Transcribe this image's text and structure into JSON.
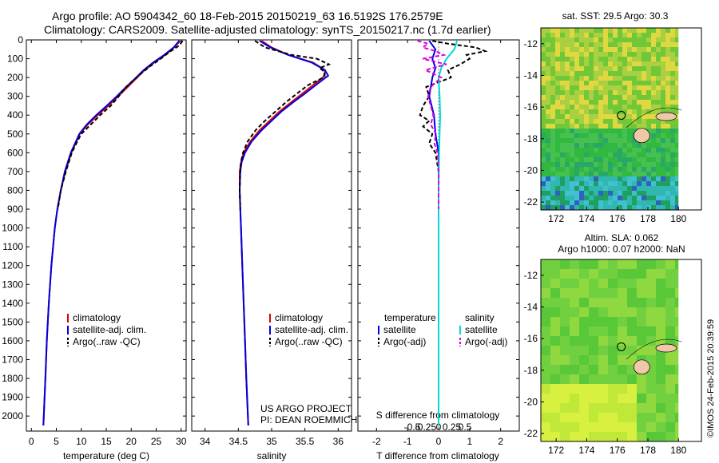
{
  "header": {
    "line1": "Argo profile: AO 5904342_60 18-Feb-2015 20150219_63 16.5192S 176.2579E",
    "line2": "Climatology: CARS2009. Satellite-adjusted climatology: synTS_20150217.nc (1.7d earlier)"
  },
  "sst_title": "sat. SST: 29.5 Argo: 30.3",
  "sla_title1": "Altim. SLA: 0.062",
  "sla_title2": "Argo h1000: 0.07 h2000: NaN",
  "watermark": "©IMOS 24-Feb-2015 20:39:59",
  "project_line1": "US ARGO PROJECT",
  "project_line2": "PI: DEAN ROEMMICH",
  "colors": {
    "climatology": "#e00000",
    "satellite": "#0000e0",
    "argo": "#000000",
    "satellite_s": "#00d8d8",
    "argo_s": "#e000e0",
    "land": "#f0c8a8"
  },
  "chart_data": [
    {
      "type": "line",
      "name": "temperature-profile",
      "xlabel": "temperature (deg C)",
      "ylabel": "",
      "xlim": [
        -1,
        31
      ],
      "ylim": [
        2080,
        0
      ],
      "xticks": [
        0,
        5,
        10,
        15,
        20,
        25,
        30
      ],
      "xtick_labels": [
        "0",
        "5",
        "10",
        "15",
        "20",
        "25",
        "30"
      ],
      "yticks": [
        0,
        100,
        200,
        300,
        400,
        500,
        600,
        700,
        800,
        900,
        1000,
        1100,
        1200,
        1300,
        1400,
        1500,
        1600,
        1700,
        1800,
        1900,
        2000
      ],
      "ytick_labels": [
        "0",
        "100",
        "200",
        "300",
        "400",
        "500",
        "600",
        "700",
        "800",
        "900",
        "1000",
        "1100",
        "1200",
        "1300",
        "1400",
        "1500",
        "1600",
        "1700",
        "1800",
        "1900",
        "2000"
      ],
      "legend": [
        "climatology",
        "satellite-adj. clim.",
        "Argo(..raw -QC)"
      ],
      "legend_position": "lower-right",
      "series": [
        {
          "name": "climatology",
          "depth": [
            5,
            40,
            80,
            120,
            160,
            200,
            250,
            300,
            350,
            400,
            450,
            500,
            600,
            700,
            800,
            900,
            1000,
            1200,
            1400,
            1600,
            1800,
            2050
          ],
          "values": [
            29.8,
            28.6,
            26.8,
            24.6,
            22.7,
            21.2,
            19.3,
            17.4,
            15.4,
            13.3,
            11.3,
            9.7,
            8.0,
            6.8,
            5.9,
            5.2,
            4.7,
            4.0,
            3.5,
            3.1,
            2.8,
            2.4
          ]
        },
        {
          "name": "satellite-adj. clim.",
          "depth": [
            5,
            40,
            80,
            120,
            160,
            200,
            250,
            300,
            350,
            400,
            450,
            500,
            600,
            700,
            800,
            900,
            1000,
            1200,
            1400,
            1600,
            1800,
            2050
          ],
          "values": [
            29.6,
            28.5,
            26.6,
            24.4,
            22.5,
            21.0,
            19.0,
            17.1,
            15.1,
            13.0,
            11.1,
            9.6,
            7.9,
            6.7,
            5.9,
            5.2,
            4.7,
            4.0,
            3.5,
            3.1,
            2.8,
            2.4
          ]
        },
        {
          "name": "Argo(..raw -QC)",
          "depth": [
            5,
            30,
            60,
            100,
            140,
            180,
            220,
            260,
            300,
            350,
            400,
            450,
            500,
            550,
            600,
            700,
            800,
            900
          ],
          "values": [
            30.3,
            29.6,
            27.9,
            25.9,
            23.8,
            21.9,
            20.2,
            18.6,
            17.5,
            15.9,
            13.8,
            11.9,
            10.0,
            9.0,
            8.1,
            6.9,
            5.9,
            5.3
          ]
        }
      ]
    },
    {
      "type": "line",
      "name": "salinity-profile",
      "xlabel": "salinity",
      "ylabel": "",
      "xlim": [
        33.8,
        36.2
      ],
      "ylim": [
        2080,
        0
      ],
      "xticks": [
        34,
        34.5,
        35,
        35.5,
        36
      ],
      "xtick_labels": [
        "34",
        "34.5",
        "35",
        "35.5",
        "36"
      ],
      "legend": [
        "climatology",
        "satellite-adj. clim.",
        "Argo(..raw -QC)"
      ],
      "legend_position": "lower-right",
      "series": [
        {
          "name": "climatology",
          "depth": [
            5,
            40,
            80,
            120,
            160,
            190,
            230,
            280,
            330,
            380,
            430,
            480,
            540,
            600,
            650,
            700,
            800,
            900,
            1000,
            1200,
            1400,
            1600,
            1800,
            2050
          ],
          "values": [
            34.85,
            35.0,
            35.25,
            35.62,
            35.8,
            35.8,
            35.66,
            35.48,
            35.3,
            35.12,
            34.97,
            34.82,
            34.68,
            34.58,
            34.54,
            34.52,
            34.52,
            34.53,
            34.54,
            34.56,
            34.58,
            34.6,
            34.62,
            34.65
          ]
        },
        {
          "name": "satellite-adj. clim.",
          "depth": [
            5,
            40,
            80,
            120,
            160,
            190,
            230,
            280,
            330,
            380,
            430,
            480,
            540,
            600,
            650,
            700,
            800,
            900,
            1000,
            1200,
            1400,
            1600,
            1800,
            2050
          ],
          "values": [
            34.82,
            34.98,
            35.25,
            35.6,
            35.8,
            35.85,
            35.7,
            35.52,
            35.33,
            35.15,
            35.0,
            34.85,
            34.7,
            34.6,
            34.55,
            34.53,
            34.52,
            34.53,
            34.54,
            34.56,
            34.58,
            34.6,
            34.62,
            34.65
          ]
        },
        {
          "name": "Argo(..raw -QC)",
          "depth": [
            5,
            40,
            80,
            100,
            130,
            150,
            170,
            200,
            240,
            280,
            330,
            380,
            430,
            480,
            540,
            600,
            650,
            700,
            800,
            900
          ],
          "values": [
            34.75,
            34.9,
            35.3,
            35.68,
            35.86,
            35.72,
            35.8,
            35.78,
            35.55,
            35.4,
            35.22,
            35.06,
            34.9,
            34.76,
            34.64,
            34.57,
            34.54,
            34.53,
            34.52,
            34.53
          ]
        }
      ]
    },
    {
      "type": "line",
      "name": "difference-profile",
      "xlabel": "T difference from climatology",
      "xlabel_top": "S difference from climatology",
      "xlim": [
        -2.6,
        2.6
      ],
      "ylim": [
        2080,
        0
      ],
      "xticks": [
        -2,
        -1,
        0,
        1,
        2
      ],
      "xtick_labels": [
        "-2",
        "-1",
        "0",
        "1",
        "2"
      ],
      "sticks": [
        -0.5,
        -0.25,
        0,
        0.25,
        0.5
      ],
      "stick_labels": [
        "-0.5",
        "-0.25",
        "0",
        "0.25",
        "0.5"
      ],
      "legend_temperature_title": "temperature",
      "legend_salinity_title": "salinity",
      "legend_temperature": [
        "satellite",
        "Argo(-adj)"
      ],
      "legend_salinity": [
        "satellite",
        "Argo(-adj)"
      ],
      "series": [
        {
          "name": "temperature satellite",
          "depth": [
            5,
            50,
            100,
            150,
            200,
            300,
            400,
            500,
            600,
            800,
            1000,
            1500,
            2050
          ],
          "values": [
            -0.3,
            -0.1,
            -0.2,
            -0.1,
            -0.2,
            -0.3,
            -0.15,
            -0.1,
            0,
            0,
            0,
            0,
            0
          ]
        },
        {
          "name": "temperature Argo(-adj)",
          "depth": [
            5,
            20,
            40,
            60,
            80,
            100,
            130,
            160,
            200,
            250,
            300,
            350,
            400,
            430,
            460,
            500,
            550,
            600,
            700,
            800,
            900
          ],
          "values": [
            -0.2,
            0.3,
            1.2,
            1.5,
            0.9,
            1.0,
            0.7,
            0.3,
            0.4,
            -0.4,
            -0.3,
            -0.5,
            -0.6,
            -0.3,
            -0.5,
            -0.2,
            -0.3,
            -0.1,
            0,
            0,
            0
          ]
        },
        {
          "name": "salinity satellite",
          "depth": [
            5,
            50,
            100,
            150,
            200,
            300,
            400,
            500,
            600,
            800,
            1000,
            1500,
            2050
          ],
          "values": [
            0.35,
            0.3,
            0.15,
            0.05,
            0,
            0.02,
            0.03,
            0.02,
            0.01,
            0,
            0,
            0,
            0
          ]
        },
        {
          "name": "salinity Argo(-adj)",
          "depth": [
            5,
            20,
            40,
            60,
            80,
            100,
            130,
            160,
            200,
            250,
            300,
            400,
            450,
            500,
            550,
            600,
            700,
            800,
            900
          ],
          "values": [
            -0.4,
            -0.2,
            -0.3,
            -0.05,
            0.1,
            -0.3,
            0.15,
            -0.25,
            0.05,
            -0.15,
            -0.2,
            -0.1,
            -0.15,
            -0.05,
            -0.08,
            -0.02,
            0,
            0,
            0
          ]
        }
      ]
    },
    {
      "type": "heatmap",
      "name": "sst-map",
      "title": "sat. SST: 29.5 Argo: 30.3",
      "xlim": [
        171,
        181.5
      ],
      "ylim": [
        -22.5,
        -11
      ],
      "xticks": [
        172,
        174,
        176,
        178,
        180
      ],
      "xtick_labels": [
        "172",
        "174",
        "176",
        "178",
        "180"
      ],
      "yticks": [
        -12,
        -14,
        -16,
        -18,
        -20,
        -22
      ],
      "ytick_labels": [
        "-12",
        "-14",
        "-16",
        "-18",
        "-20",
        "-22"
      ],
      "argo_position": [
        176.26,
        -16.52
      ]
    },
    {
      "type": "heatmap",
      "name": "sla-map",
      "title": "Altim. SLA: 0.062",
      "xlim": [
        171,
        181.5
      ],
      "ylim": [
        -22.5,
        -11
      ],
      "xticks": [
        172,
        174,
        176,
        178,
        180
      ],
      "xtick_labels": [
        "172",
        "174",
        "176",
        "178",
        "180"
      ],
      "yticks": [
        -12,
        -14,
        -16,
        -18,
        -20,
        -22
      ],
      "ytick_labels": [
        "-12",
        "-14",
        "-16",
        "-18",
        "-20",
        "-22"
      ],
      "argo_position": [
        176.26,
        -16.52
      ]
    }
  ]
}
